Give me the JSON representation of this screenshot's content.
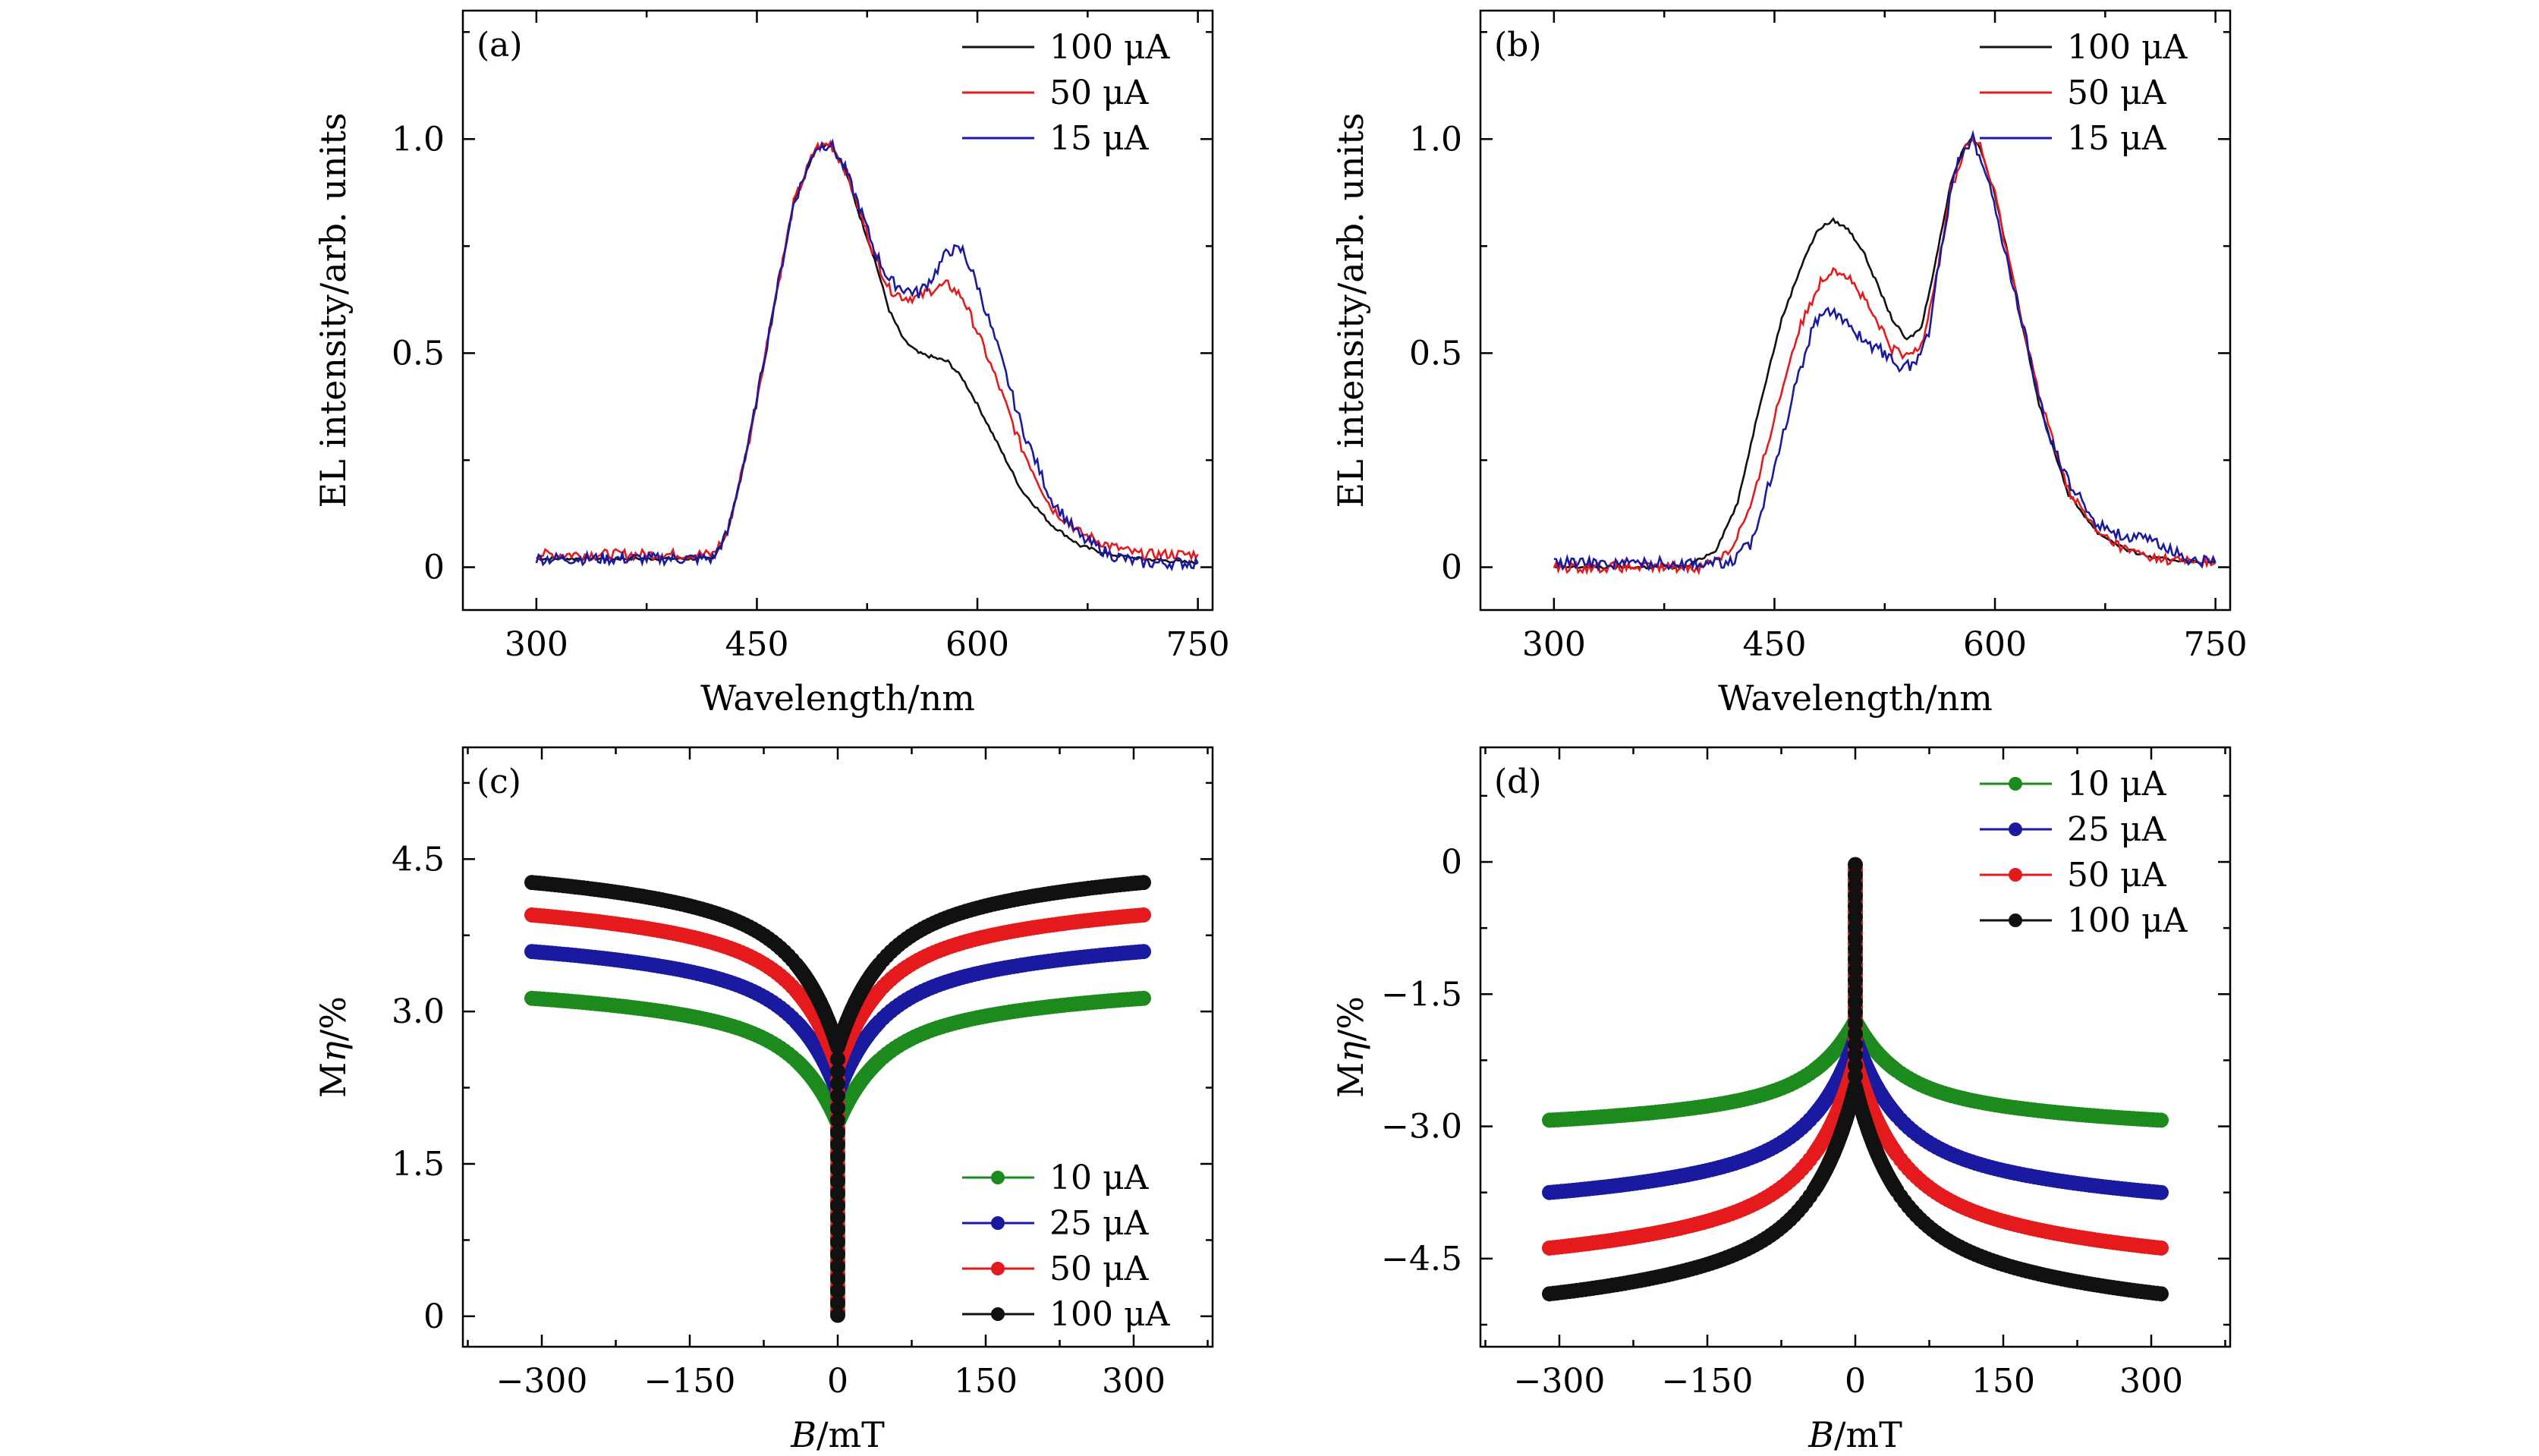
{
  "colors": {
    "black": "#111111",
    "red": "#e41a1c",
    "blue": "#1a1aa0",
    "green": "#1d8a1d"
  },
  "chart_data": [
    {
      "panel": "(a)",
      "type": "line",
      "xlabel": "Wavelength/nm",
      "ylabel": "EL intensity/arb. units",
      "xlim": [
        250,
        760
      ],
      "ylim": [
        -0.1,
        1.3
      ],
      "xticks": [
        "300",
        "450",
        "600",
        "750"
      ],
      "yticks": [
        "0",
        "0.5",
        "1.0"
      ],
      "legend_position": "top-right",
      "series": [
        {
          "name": "100 μA",
          "color": "black",
          "x": [
            300,
            420,
            430,
            445,
            460,
            475,
            490,
            500,
            510,
            520,
            530,
            540,
            550,
            560,
            570,
            580,
            590,
            600,
            615,
            630,
            650,
            670,
            690,
            710,
            750
          ],
          "y": [
            0.02,
            0.02,
            0.08,
            0.3,
            0.58,
            0.85,
            0.98,
            0.99,
            0.93,
            0.82,
            0.72,
            0.6,
            0.53,
            0.5,
            0.49,
            0.48,
            0.44,
            0.38,
            0.28,
            0.18,
            0.1,
            0.05,
            0.03,
            0.02,
            0.01
          ]
        },
        {
          "name": "50 μA",
          "color": "red",
          "x": [
            300,
            420,
            430,
            445,
            460,
            475,
            490,
            500,
            510,
            520,
            530,
            540,
            550,
            560,
            570,
            580,
            590,
            600,
            615,
            630,
            650,
            670,
            690,
            710,
            750
          ],
          "y": [
            0.03,
            0.03,
            0.08,
            0.3,
            0.58,
            0.85,
            0.98,
            0.99,
            0.93,
            0.83,
            0.73,
            0.65,
            0.63,
            0.63,
            0.65,
            0.66,
            0.63,
            0.55,
            0.42,
            0.28,
            0.14,
            0.08,
            0.05,
            0.03,
            0.03
          ]
        },
        {
          "name": "15 μA",
          "color": "blue",
          "x": [
            300,
            420,
            430,
            445,
            460,
            475,
            490,
            500,
            510,
            520,
            530,
            540,
            550,
            560,
            570,
            580,
            590,
            600,
            615,
            630,
            650,
            670,
            690,
            710,
            750
          ],
          "y": [
            0.02,
            0.02,
            0.08,
            0.3,
            0.58,
            0.85,
            0.98,
            0.99,
            0.93,
            0.84,
            0.74,
            0.67,
            0.65,
            0.64,
            0.68,
            0.74,
            0.74,
            0.66,
            0.5,
            0.33,
            0.16,
            0.07,
            0.03,
            0.01,
            0.01
          ]
        }
      ]
    },
    {
      "panel": "(b)",
      "type": "line",
      "xlabel": "Wavelength/nm",
      "ylabel": "EL intensity/arb. units",
      "xlim": [
        250,
        760
      ],
      "ylim": [
        -0.1,
        1.3
      ],
      "xticks": [
        "300",
        "450",
        "600",
        "750"
      ],
      "yticks": [
        "0",
        "0.5",
        "1.0"
      ],
      "legend_position": "top-right",
      "series": [
        {
          "name": "100 μA",
          "color": "black",
          "x": [
            300,
            390,
            410,
            425,
            440,
            455,
            470,
            480,
            490,
            500,
            510,
            520,
            530,
            540,
            550,
            560,
            570,
            580,
            585,
            590,
            600,
            615,
            630,
            650,
            670,
            690,
            710,
            750
          ],
          "y": [
            0.0,
            0.0,
            0.04,
            0.15,
            0.38,
            0.58,
            0.72,
            0.79,
            0.81,
            0.79,
            0.74,
            0.66,
            0.58,
            0.53,
            0.56,
            0.72,
            0.9,
            0.99,
            1.0,
            0.98,
            0.87,
            0.63,
            0.38,
            0.17,
            0.08,
            0.04,
            0.02,
            0.01
          ]
        },
        {
          "name": "50 μA",
          "color": "red",
          "x": [
            300,
            400,
            420,
            435,
            450,
            465,
            480,
            490,
            500,
            510,
            520,
            530,
            540,
            550,
            560,
            570,
            580,
            585,
            590,
            600,
            615,
            630,
            650,
            670,
            690,
            710,
            750
          ],
          "y": [
            0.0,
            0.0,
            0.04,
            0.15,
            0.35,
            0.54,
            0.66,
            0.7,
            0.68,
            0.63,
            0.57,
            0.51,
            0.49,
            0.52,
            0.68,
            0.88,
            0.98,
            1.0,
            0.98,
            0.87,
            0.63,
            0.4,
            0.18,
            0.08,
            0.04,
            0.02,
            0.01
          ]
        },
        {
          "name": "15 μA",
          "color": "blue",
          "x": [
            300,
            420,
            435,
            450,
            465,
            475,
            485,
            495,
            505,
            515,
            525,
            535,
            545,
            555,
            565,
            575,
            585,
            595,
            605,
            620,
            635,
            650,
            670,
            690,
            710,
            730,
            750
          ],
          "y": [
            0.01,
            0.01,
            0.06,
            0.24,
            0.43,
            0.55,
            0.61,
            0.58,
            0.55,
            0.52,
            0.5,
            0.47,
            0.47,
            0.55,
            0.78,
            0.96,
            1.0,
            0.92,
            0.76,
            0.55,
            0.32,
            0.2,
            0.1,
            0.07,
            0.06,
            0.02,
            0.01
          ]
        }
      ]
    },
    {
      "panel": "(c)",
      "type": "line",
      "xlabel_italic": "B",
      "xlabel_rest": "/mT",
      "ylabel_italic": "Mη",
      "ylabel_rest": "/%",
      "xlim": [
        -380,
        380
      ],
      "ylim": [
        -0.3,
        5.6
      ],
      "xticks": [
        "−300",
        "−150",
        "0",
        "150",
        "300"
      ],
      "yticks": [
        "0",
        "1.5",
        "3.0",
        "4.5"
      ],
      "legend_position": "bottom-right",
      "series": [
        {
          "name": "10 μA",
          "color": "green",
          "saturation": 3.13,
          "near_zero": 1.9
        },
        {
          "name": "25 μA",
          "color": "blue",
          "saturation": 3.59,
          "near_zero": 2.2
        },
        {
          "name": "50 μA",
          "color": "red",
          "saturation": 3.95,
          "near_zero": 2.45
        },
        {
          "name": "100 μA",
          "color": "black",
          "saturation": 4.27,
          "near_zero": 2.65
        }
      ]
    },
    {
      "panel": "(d)",
      "type": "line",
      "xlabel_italic": "B",
      "xlabel_rest": "/mT",
      "ylabel_italic": "Mη",
      "ylabel_rest": "/%",
      "xlim": [
        -380,
        380
      ],
      "ylim": [
        -5.5,
        1.3
      ],
      "xticks": [
        "−300",
        "−150",
        "0",
        "150",
        "300"
      ],
      "yticks": [
        "−4.5",
        "−3.0",
        "−1.5",
        "0"
      ],
      "legend_position": "top-right",
      "series": [
        {
          "name": "10 μA",
          "color": "green",
          "saturation": -2.93,
          "near_zero": -1.8
        },
        {
          "name": "25 μA",
          "color": "blue",
          "saturation": -3.75,
          "near_zero": -2.0
        },
        {
          "name": "50 μA",
          "color": "red",
          "saturation": -4.38,
          "near_zero": -2.25
        },
        {
          "name": "100 μA",
          "color": "black",
          "saturation": -4.9,
          "near_zero": -2.55
        }
      ]
    }
  ]
}
